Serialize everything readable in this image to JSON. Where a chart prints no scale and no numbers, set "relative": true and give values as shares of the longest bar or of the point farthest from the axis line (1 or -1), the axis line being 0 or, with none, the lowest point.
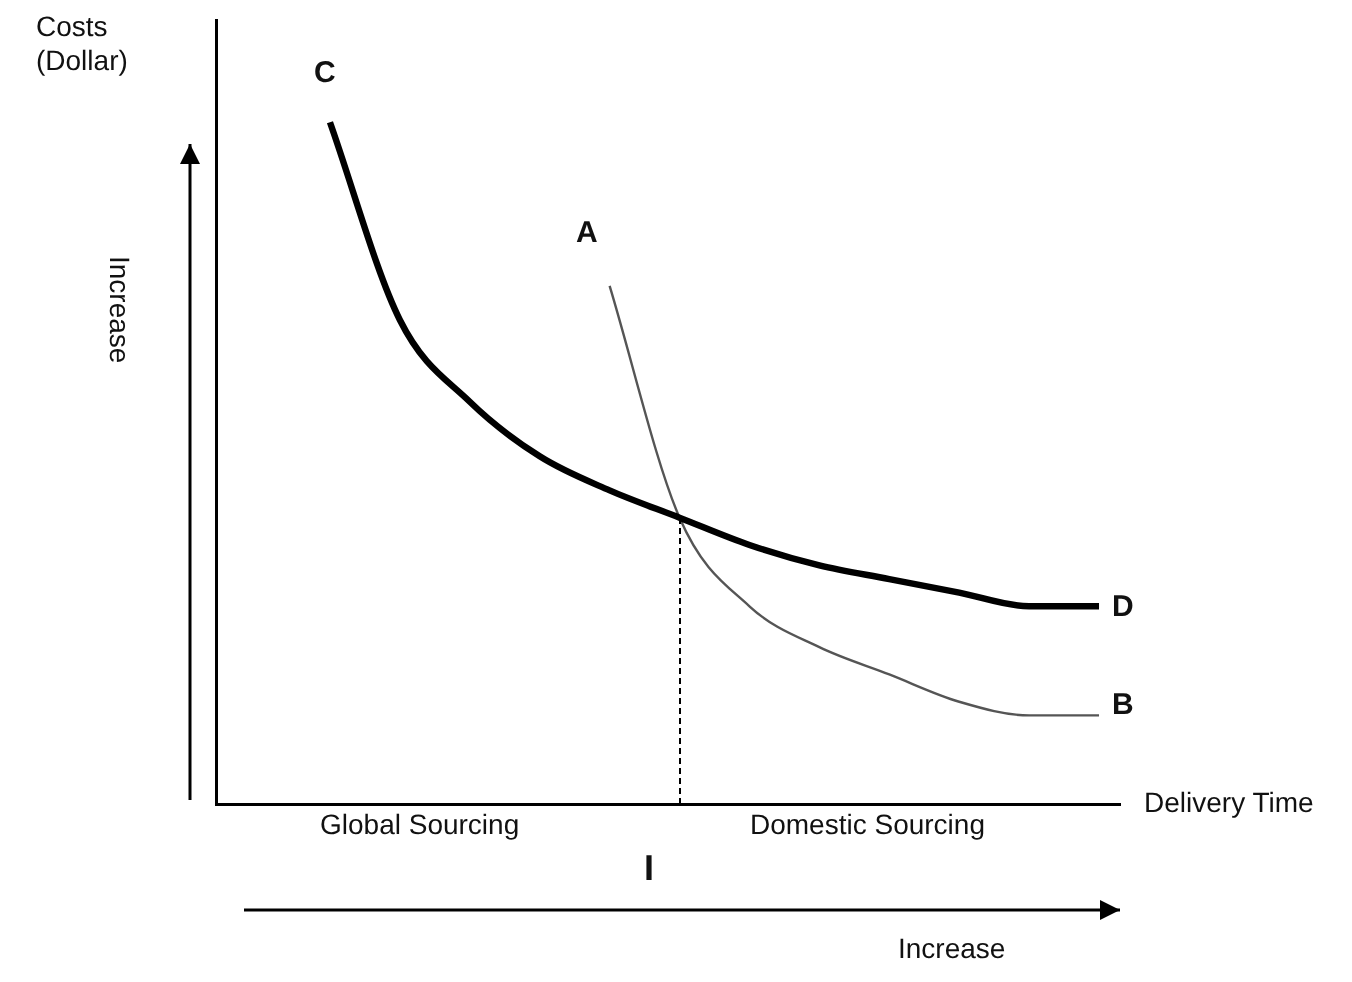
{
  "chart_data": {
    "type": "line",
    "relative": true,
    "ylabel": "Costs (Dollar)",
    "xlabel": "Delivery Time",
    "tick_labels": false,
    "grid": false,
    "legend": false,
    "marker": "none",
    "categories": [
      null,
      null,
      null,
      null,
      null,
      null,
      null,
      null,
      null,
      null,
      null,
      null,
      null
    ],
    "series": [
      {
        "color": "#000000",
        "values": [
          null,
          1,
          0.71,
          0.59,
          0.51,
          0.46,
          0.42,
          0.38,
          0.35,
          0.33,
          0.31,
          0.29,
          0.29
        ]
      },
      {
        "color": "#555555",
        "values": [
          null,
          null,
          null,
          null,
          null,
          0.76,
          0.42,
          0.29,
          0.23,
          0.19,
          0.15,
          0.13,
          0.13
        ]
      }
    ],
    "annotations": [
      "C",
      "D",
      "A",
      "B",
      "Global Sourcing",
      "Domestic Sourcing",
      "I",
      "Increase",
      "Increase"
    ]
  }
}
